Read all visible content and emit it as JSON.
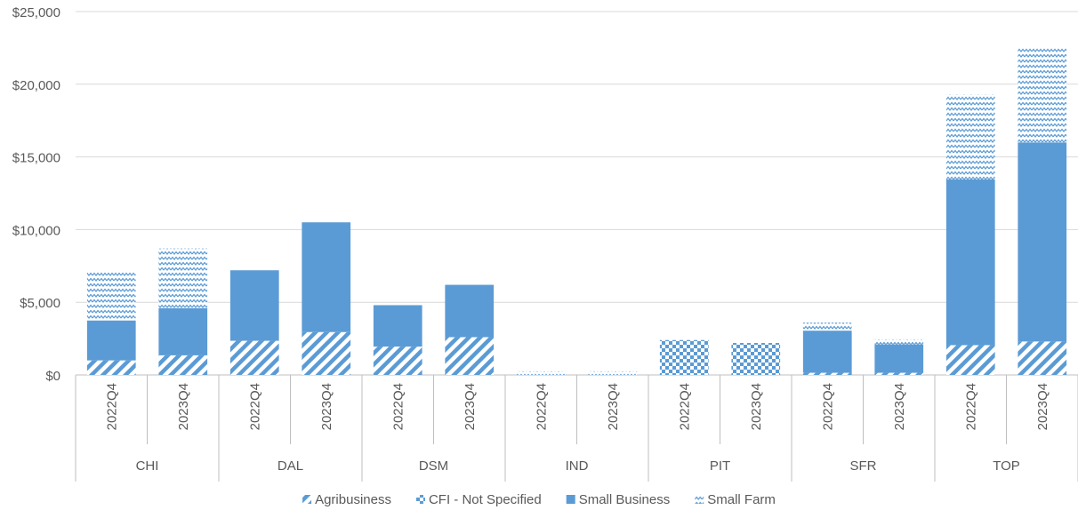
{
  "chart_data": {
    "type": "bar",
    "stacked": true,
    "title": "",
    "xlabel": "",
    "ylabel": "",
    "ylim": [
      0,
      25000
    ],
    "yticks": [
      0,
      5000,
      10000,
      15000,
      20000,
      25000
    ],
    "ytick_labels": [
      "$0",
      "$5,000",
      "$10,000",
      "$15,000",
      "$20,000",
      "$25,000"
    ],
    "grid": true,
    "legend_position": "bottom",
    "groups": [
      "CHI",
      "DAL",
      "DSM",
      "IND",
      "PIT",
      "SFR",
      "TOP"
    ],
    "periods": [
      "2022Q4",
      "2023Q4"
    ],
    "series": [
      {
        "name": "Agribusiness",
        "pattern": "diagonal-stripe",
        "values": [
          1000,
          1350,
          2350,
          2950,
          1950,
          2600,
          0,
          0,
          0,
          0,
          150,
          150,
          2050,
          2300
        ]
      },
      {
        "name": "CFI - Not Specified",
        "pattern": "checker",
        "values": [
          0,
          0,
          0,
          0,
          0,
          0,
          0,
          0,
          2400,
          2200,
          0,
          0,
          0,
          0
        ]
      },
      {
        "name": "Small Business",
        "pattern": "solid",
        "values": [
          2750,
          3250,
          4850,
          7550,
          2850,
          3600,
          0,
          0,
          0,
          0,
          2900,
          1950,
          11400,
          13700
        ]
      },
      {
        "name": "Small Farm",
        "pattern": "zigzag",
        "values": [
          3400,
          4100,
          0,
          0,
          0,
          0,
          250,
          250,
          0,
          0,
          550,
          350,
          5850,
          6550
        ]
      }
    ],
    "colors": {
      "series": "#5b9bd5",
      "gridline": "#d9d9d9",
      "axis": "#bfbfbf",
      "text": "#595959"
    }
  }
}
